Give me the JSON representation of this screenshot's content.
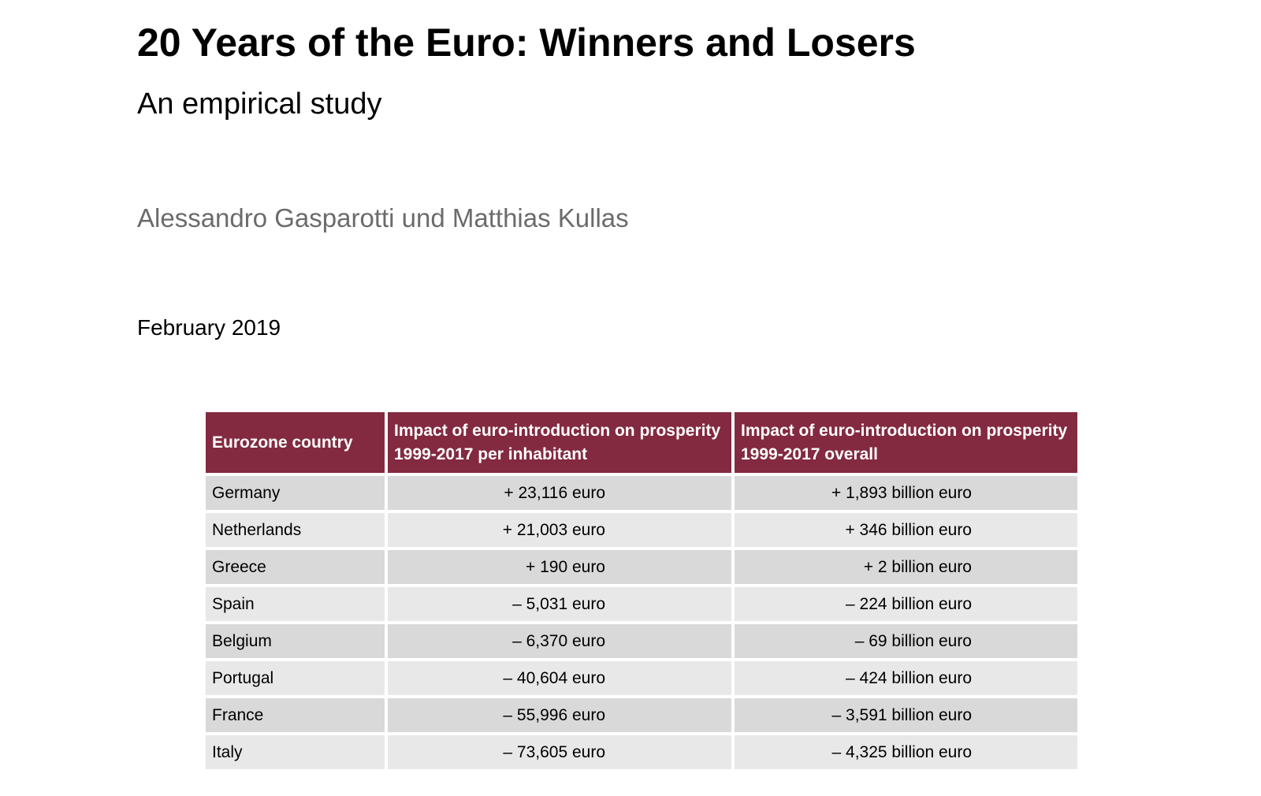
{
  "document": {
    "title": "20 Years of the Euro: Winners and Losers",
    "subtitle": "An empirical study",
    "authors": "Alessandro Gasparotti und Matthias Kullas",
    "date": "February 2019"
  },
  "table": {
    "headers": {
      "country": "Eurozone country",
      "per_inhabitant": "Impact of euro-introduction on prosperity 1999-2017 per inhabitant",
      "overall": "Impact of euro-introduction on prosperity 1999-2017 overall"
    },
    "rows": [
      {
        "country": "Germany",
        "per_inhabitant": "+ 23,116 euro",
        "overall": "+ 1,893 billion euro"
      },
      {
        "country": "Netherlands",
        "per_inhabitant": "+ 21,003 euro",
        "overall": "+ 346 billion euro"
      },
      {
        "country": "Greece",
        "per_inhabitant": "+ 190 euro",
        "overall": "+ 2 billion euro"
      },
      {
        "country": "Spain",
        "per_inhabitant": "– 5,031 euro",
        "overall": "– 224 billion euro"
      },
      {
        "country": "Belgium",
        "per_inhabitant": "– 6,370 euro",
        "overall": "– 69 billion euro"
      },
      {
        "country": "Portugal",
        "per_inhabitant": "– 40,604 euro",
        "overall": "– 424 billion euro"
      },
      {
        "country": "France",
        "per_inhabitant": "– 55,996 euro",
        "overall": "– 3,591 billion euro"
      },
      {
        "country": "Italy",
        "per_inhabitant": "– 73,605 euro",
        "overall": "– 4,325 billion euro"
      }
    ]
  },
  "colors": {
    "header_background": "#832a40",
    "header_text": "#ffffff",
    "row_dark": "#d9d9d9",
    "row_light": "#e8e8e8",
    "authors_text": "#6b6b6b"
  }
}
